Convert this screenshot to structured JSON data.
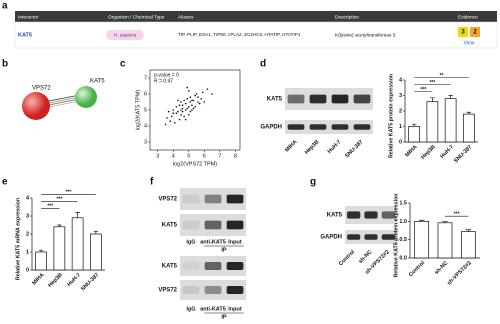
{
  "panel_labels": [
    "a",
    "b",
    "c",
    "d",
    "e",
    "f",
    "g"
  ],
  "table": {
    "headers": [
      "Interactor",
      "Organism / Chemical Type",
      "Aliases",
      "Description",
      "Evidence"
    ],
    "row": [
      "KAT5",
      "H. sapiens",
      "TIP, PLIP, ESA1, TIP60, cPLA2, ZC2HC5, HTATIP, HTATIP1",
      "K(lysine) acetyltransferase 5"
    ],
    "evidence": [
      "3",
      "2"
    ],
    "evidence_link": "View"
  },
  "network": {
    "nodes": [
      "VPS72",
      "KAT5"
    ]
  },
  "blots": {
    "d": {
      "rows": [
        "KAT5",
        "GAPDH"
      ],
      "lanes": [
        "MIHA",
        "Hep3B",
        "HuH-7",
        "SNU-387"
      ]
    },
    "f_top": {
      "rows": [
        "VPS72",
        "KAT5"
      ],
      "lanes": [
        "IgG",
        "anti-KAT5",
        "Input"
      ],
      "group": "IP"
    },
    "f_bottom": {
      "rows": [
        "KAT5",
        "VPS72"
      ],
      "lanes": [
        "IgG",
        "anti-KAT5",
        "Input"
      ],
      "group": "IP"
    },
    "g": {
      "rows": [
        "KAT5",
        "GAPDH"
      ],
      "lanes": [
        "Control",
        "sh-NC",
        "sh-VPS72#2"
      ]
    }
  },
  "chart_data": [
    {
      "type": "scatter",
      "xlabel": "log2(VPS72 TPM)",
      "ylabel": "log2(KAT5 TPM)",
      "annotations": [
        "p-value = 0",
        "R = 0.47"
      ],
      "xlim": [
        2.5,
        8.3
      ],
      "xticks": [
        3,
        4,
        5,
        6,
        7,
        8
      ],
      "ylim": [
        2.5,
        7.5
      ],
      "yticks": [
        3,
        4,
        5,
        6,
        7
      ],
      "color": "#111111",
      "x": [
        4.2,
        4.5,
        4.8,
        5.0,
        5.3,
        3.9,
        4.6,
        5.1,
        5.6,
        4.4,
        4.9,
        5.2,
        4.0,
        4.7,
        5.5,
        5.8,
        4.3,
        4.1,
        5.0,
        4.6,
        3.6,
        5.4,
        4.8,
        5.9,
        4.5,
        5.1,
        4.2,
        6.2,
        3.8,
        4.9,
        5.3,
        4.7,
        5.7,
        4.4,
        5.0,
        4.0,
        5.2,
        6.5,
        3.5,
        4.6,
        5.4,
        4.8,
        5.1,
        4.3,
        5.6,
        4.9,
        3.7,
        6.0,
        4.5,
        5.2
      ],
      "y": [
        4.8,
        5.0,
        5.4,
        5.2,
        5.6,
        4.6,
        4.9,
        5.8,
        5.5,
        4.4,
        5.1,
        5.3,
        5.0,
        5.6,
        6.0,
        5.7,
        4.9,
        4.2,
        4.7,
        5.3,
        4.5,
        5.9,
        5.0,
        6.1,
        5.5,
        4.9,
        5.2,
        6.3,
        4.3,
        5.7,
        5.1,
        4.6,
        5.4,
        5.3,
        6.2,
        4.8,
        5.6,
        6.0,
        4.1,
        5.1,
        5.2,
        4.4,
        5.5,
        5.6,
        5.8,
        6.4,
        4.9,
        5.5,
        4.7,
        5.0
      ]
    },
    {
      "type": "bar",
      "ylabel": "Relative KAT5 protein expression",
      "categories": [
        "MIHA",
        "Hep3B",
        "HuH-7",
        "SNU-387"
      ],
      "values": [
        1.0,
        2.6,
        2.8,
        1.8
      ],
      "errors": [
        0.15,
        0.25,
        0.2,
        0.12
      ],
      "significance": [
        null,
        "***",
        "***",
        "**"
      ],
      "ylim": [
        0,
        4
      ],
      "yticks": [
        0,
        1,
        2,
        3,
        4
      ],
      "color": "#ffffff"
    },
    {
      "type": "bar",
      "ylabel": "Relative KAT5 mRNA expression",
      "categories": [
        "MIHA",
        "Hep3B",
        "HuH-7",
        "SNU-387"
      ],
      "values": [
        1.0,
        2.4,
        2.9,
        2.0
      ],
      "errors": [
        0.1,
        0.1,
        0.3,
        0.15
      ],
      "significance": [
        null,
        "***",
        "***",
        "***"
      ],
      "ylim": [
        0,
        4
      ],
      "yticks": [
        0,
        1,
        2,
        3,
        4
      ],
      "color": "#ffffff"
    },
    {
      "type": "bar",
      "ylabel": "Relative KAT5 protein expression",
      "categories": [
        "Control",
        "sh-NC",
        "sh-VPS72#2"
      ],
      "values": [
        1.0,
        0.96,
        0.72
      ],
      "errors": [
        0.03,
        0.03,
        0.05
      ],
      "significance": [
        null,
        null,
        "***"
      ],
      "ylim": [
        0,
        1.5
      ],
      "yticks": [
        {
          "value": 0,
          "label": "0.0"
        },
        {
          "value": 0.5,
          "label": "0.5"
        },
        {
          "value": 1,
          "label": "1.0"
        },
        {
          "value": 1.5,
          "label": "1.5"
        }
      ],
      "color": "#ffffff"
    }
  ]
}
